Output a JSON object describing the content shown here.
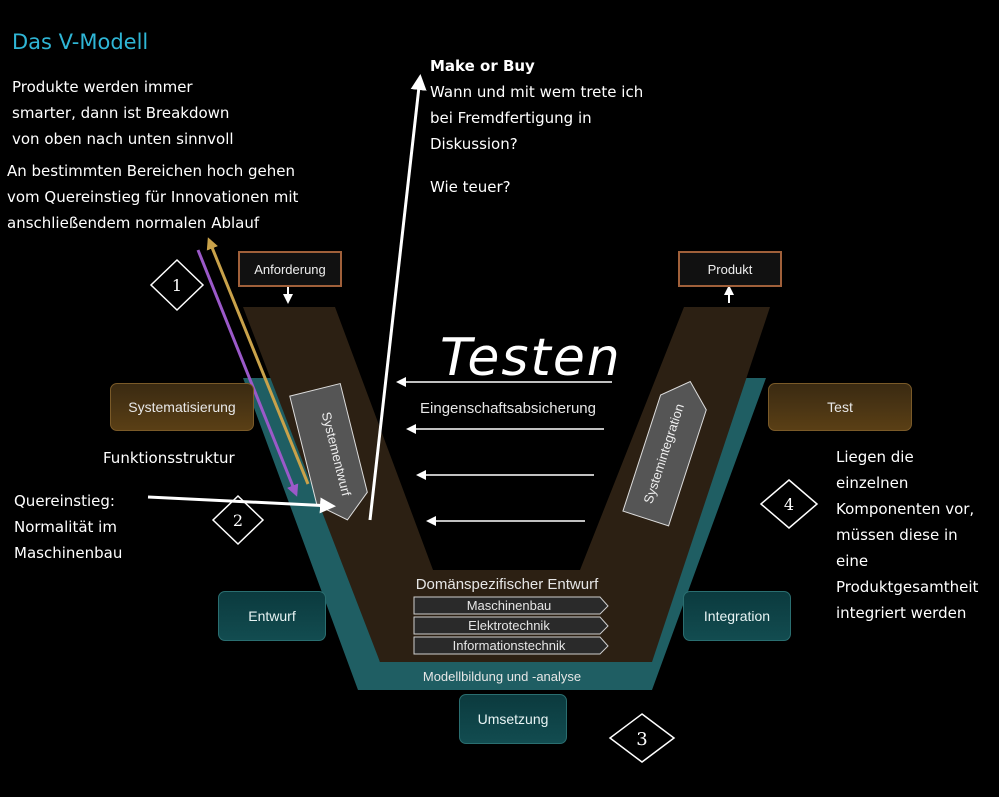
{
  "title": "Das V-Modell",
  "notes": {
    "top_left_lines": [
      "Produkte werden immer",
      "smarter, dann ist Breakdown",
      "von oben nach unten sinnvoll"
    ],
    "innovation_lines": [
      "An bestimmten Bereichen hoch gehen",
      "vom Quereinstieg für Innovationen mit",
      "anschließendem normalen Ablauf"
    ],
    "make_or_buy_heading": "Make or Buy",
    "make_or_buy_lines": [
      "Wann und mit wem trete ich",
      "bei Fremdfertigung in",
      "Diskussion?"
    ],
    "cost_question": "Wie teuer?",
    "funktionsstruktur": "Funktionsstruktur",
    "quereinstieg_lines": [
      "Quereinstieg:",
      "Normalität im",
      "Maschinenbau"
    ],
    "integration_note_lines": [
      "Liegen die",
      "einzelnen",
      "Komponenten vor,",
      "müssen diese in",
      "eine",
      "Produktgesamtheit",
      "integriert werden"
    ],
    "handwritten": "Testen"
  },
  "diagram": {
    "anforderung": "Anforderung",
    "produkt": "Produkt",
    "systematisierung": "Systematisierung",
    "test": "Test",
    "entwurf": "Entwurf",
    "integration": "Integration",
    "umsetzung": "Umsetzung",
    "systementwurf": "Systementwurf",
    "systemintegration": "Systemintegration",
    "eigenschaftsabsicherung": "Eingenschaftsabsicherung",
    "domain_heading": "Domänspezifischer Entwurf",
    "domains": [
      "Maschinenbau",
      "Elektrotechnik",
      "Informationstechnik"
    ],
    "modellbildung": "Modellbildung und -analyse",
    "markers": [
      "1",
      "2",
      "3",
      "4"
    ]
  },
  "colors": {
    "title": "#2fb6d6",
    "teal": "#1f5e63",
    "brown": "#2c2013",
    "gold_arrow": "#c9a24a",
    "purple_arrow": "#9b59c9"
  }
}
